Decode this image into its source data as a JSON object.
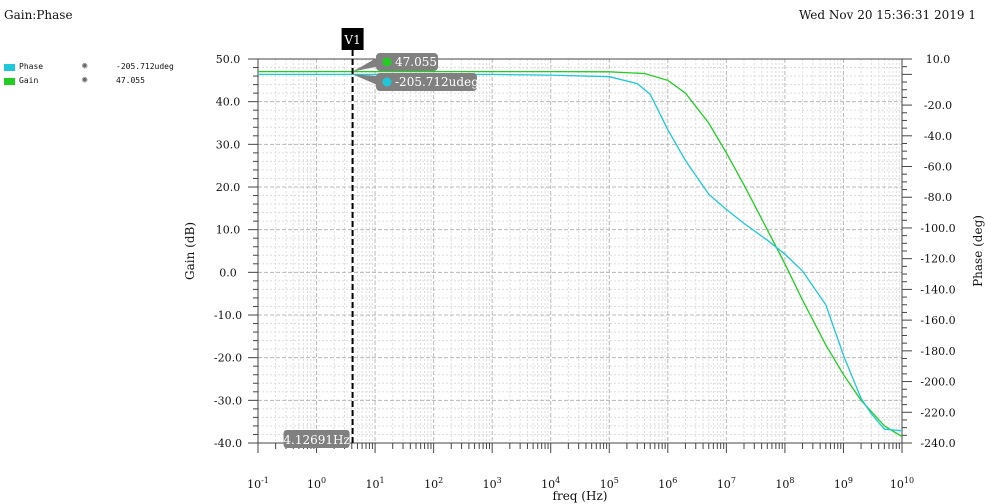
{
  "window": {
    "title": "Gain:Phase",
    "timestamp": "Wed Nov 20 15:36:31 2019  1"
  },
  "legend": [
    {
      "name": "Phase",
      "value": "-205.712udeg",
      "color": "#1ec8d8",
      "icon": "eye-icon"
    },
    {
      "name": "Gain",
      "value": "47.055",
      "color": "#22cc22",
      "icon": "eye-icon"
    }
  ],
  "marker": {
    "name": "V1",
    "freq_label": "4.12691Hz",
    "freq_hz": 4.12691,
    "gain_label": "47.055",
    "phase_label": "-205.712udeg"
  },
  "chart_data": {
    "type": "line",
    "title": "Gain:Phase",
    "xlabel": "freq (Hz)",
    "xscale": "log",
    "xlim": [
      0.1,
      10000000000
    ],
    "x_ticks": [
      {
        "base": "10",
        "exp": "-1",
        "value": 0.1
      },
      {
        "base": "10",
        "exp": "0",
        "value": 1
      },
      {
        "base": "10",
        "exp": "1",
        "value": 10
      },
      {
        "base": "10",
        "exp": "2",
        "value": 100
      },
      {
        "base": "10",
        "exp": "3",
        "value": 1000
      },
      {
        "base": "10",
        "exp": "4",
        "value": 10000
      },
      {
        "base": "10",
        "exp": "5",
        "value": 100000
      },
      {
        "base": "10",
        "exp": "6",
        "value": 1000000
      },
      {
        "base": "10",
        "exp": "7",
        "value": 10000000
      },
      {
        "base": "10",
        "exp": "8",
        "value": 100000000
      },
      {
        "base": "10",
        "exp": "9",
        "value": 1000000000
      },
      {
        "base": "10",
        "exp": "10",
        "value": 10000000000
      }
    ],
    "left_axis": {
      "label": "Gain (dB)",
      "ylim": [
        -40,
        50
      ],
      "ticks": [
        "50.0",
        "40.0",
        "30.0",
        "20.0",
        "10.0",
        "0.0",
        "-10.0",
        "-20.0",
        "-30.0",
        "-40.0"
      ]
    },
    "right_axis": {
      "label": "Phase (deg)",
      "ylim": [
        -240,
        10
      ],
      "ticks": [
        "10.0",
        "-20.0",
        "-40.0",
        "-60.0",
        "-80.0",
        "-100.0",
        "-120.0",
        "-140.0",
        "-160.0",
        "-180.0",
        "-200.0",
        "-220.0",
        "-240.0"
      ]
    },
    "grid": true,
    "series": [
      {
        "name": "Gain",
        "axis": "left",
        "color": "#22cc22",
        "x": [
          0.1,
          1,
          10,
          100,
          1000,
          10000,
          100000,
          400000,
          1000000,
          2000000,
          5000000,
          10000000,
          20000000,
          50000000,
          100000000,
          200000000,
          500000000,
          1000000000,
          2000000000,
          5000000000,
          10000000000
        ],
        "y": [
          47.055,
          47.055,
          47.055,
          47.055,
          47.055,
          47.055,
          47.0,
          46.6,
          45.0,
          42.0,
          35.0,
          28.0,
          20.5,
          10.0,
          2.0,
          -6.5,
          -17.0,
          -24.0,
          -30.0,
          -36.0,
          -38.5
        ]
      },
      {
        "name": "Phase",
        "axis": "right",
        "color": "#1ec8d8",
        "x": [
          0.1,
          1,
          10,
          100,
          1000,
          10000,
          100000,
          300000,
          500000,
          1000000,
          2000000,
          5000000,
          10000000,
          20000000,
          50000000,
          100000000,
          200000000,
          500000000,
          1000000000,
          2000000000,
          3000000000,
          5000000000,
          10000000000
        ],
        "y": [
          0.0,
          0.0,
          0.0,
          0.0,
          0.0,
          -0.5,
          -1.5,
          -6.0,
          -13.0,
          -36.0,
          -56.0,
          -78.0,
          -88.0,
          -97.0,
          -108.0,
          -117.0,
          -128.0,
          -150.0,
          -183.0,
          -211.0,
          -221.0,
          -231.0,
          -232.0
        ]
      }
    ]
  }
}
